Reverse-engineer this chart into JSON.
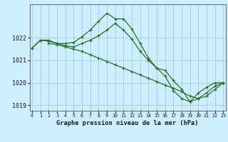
{
  "title": "Graphe pression niveau de la mer (hPa)",
  "bg_color": "#cceeff",
  "grid_color": "#aad4d4",
  "line_color": "#2d6e2d",
  "line1": {
    "x": [
      0,
      1,
      2,
      3,
      4,
      5,
      6,
      7,
      8,
      9,
      10,
      11,
      12,
      13,
      14,
      15,
      16,
      17,
      18,
      19,
      20,
      21,
      22,
      23
    ],
    "y": [
      1021.55,
      1021.9,
      1021.9,
      1021.75,
      1021.75,
      1021.8,
      1022.05,
      1022.35,
      1022.75,
      1023.1,
      1022.85,
      1022.85,
      1022.4,
      1021.75,
      1021.1,
      1020.65,
      1020.3,
      1019.65,
      1019.3,
      1019.15,
      1019.55,
      1019.8,
      1020.0,
      1020.0
    ]
  },
  "line2": {
    "x": [
      0,
      1,
      2,
      3,
      4,
      5,
      6,
      7,
      8,
      9,
      10,
      11,
      12,
      13,
      14,
      15,
      16,
      17,
      18,
      19,
      20,
      21,
      22,
      23
    ],
    "y": [
      1021.55,
      1021.9,
      1021.85,
      1021.75,
      1021.65,
      1021.6,
      1021.75,
      1021.9,
      1022.1,
      1022.35,
      1022.65,
      1022.35,
      1021.95,
      1021.4,
      1021.0,
      1020.65,
      1020.55,
      1020.1,
      1019.7,
      1019.15,
      1019.3,
      1019.55,
      1019.85,
      1020.0
    ]
  },
  "line3": {
    "x": [
      2,
      3,
      4,
      5,
      6,
      7,
      8,
      9,
      10,
      11,
      12,
      13,
      14,
      15,
      16,
      17,
      18,
      19,
      20,
      21,
      22,
      23
    ],
    "y": [
      1021.75,
      1021.7,
      1021.6,
      1021.5,
      1021.4,
      1021.25,
      1021.1,
      1020.95,
      1020.8,
      1020.65,
      1020.5,
      1020.35,
      1020.2,
      1020.05,
      1019.9,
      1019.75,
      1019.6,
      1019.4,
      1019.3,
      1019.4,
      1019.7,
      1020.0
    ]
  },
  "ylim": [
    1018.75,
    1023.5
  ],
  "yticks": [
    1019,
    1020,
    1021,
    1022
  ],
  "xticks": [
    0,
    1,
    2,
    3,
    4,
    5,
    6,
    7,
    8,
    9,
    10,
    11,
    12,
    13,
    14,
    15,
    16,
    17,
    18,
    19,
    20,
    21,
    22,
    23
  ],
  "xlim": [
    -0.3,
    23.3
  ]
}
